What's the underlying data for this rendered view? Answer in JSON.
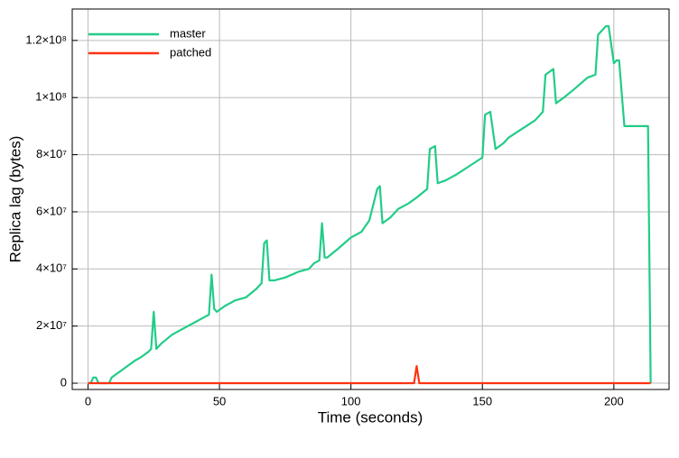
{
  "chart_data": {
    "type": "line",
    "x_label": "Time (seconds)",
    "y_label": "Replica lag (bytes)",
    "xlim": [
      -6,
      221
    ],
    "ylim": [
      -2200000,
      131000000
    ],
    "xticks": [
      0,
      50,
      100,
      150,
      200
    ],
    "yticks": [
      0,
      {
        "value": 20000000,
        "label": "2×10⁷"
      },
      {
        "value": 40000000,
        "label": "4×10⁷"
      },
      {
        "value": 60000000,
        "label": "6×10⁷"
      },
      {
        "value": 80000000,
        "label": "8×10⁷"
      },
      {
        "value": 100000000,
        "label": "1×10⁸"
      },
      {
        "value": 120000000,
        "label": "1.2×10⁸"
      }
    ],
    "grid": true,
    "legend": "upper left",
    "series": [
      {
        "name": "master",
        "color": "#22cc88",
        "x": [
          0,
          1,
          2,
          3,
          4,
          8,
          9,
          12,
          15,
          18,
          20,
          23,
          24,
          25,
          26,
          28,
          32,
          36,
          40,
          44,
          46,
          47,
          48,
          49,
          52,
          56,
          60,
          64,
          66,
          67,
          68,
          69,
          71,
          75,
          80,
          84,
          86,
          88,
          89,
          90,
          91,
          95,
          100,
          104,
          107,
          110,
          111,
          112,
          115,
          118,
          122,
          125,
          129,
          130,
          132,
          133,
          136,
          140,
          145,
          150,
          151,
          153,
          155,
          158,
          160,
          165,
          170,
          173,
          174,
          177,
          178,
          181,
          185,
          190,
          193,
          194,
          197,
          198,
          200,
          201,
          202,
          204,
          213,
          214
        ],
        "values": [
          0,
          0,
          2000000,
          2000000,
          0,
          0,
          2000000,
          4000000,
          6000000,
          8000000,
          9000000,
          11000000,
          12000000,
          25000000,
          12000000,
          14000000,
          17000000,
          19000000,
          21000000,
          23000000,
          24000000,
          38000000,
          26000000,
          25000000,
          27000000,
          29000000,
          30000000,
          33000000,
          35000000,
          49000000,
          50000000,
          36000000,
          36000000,
          37000000,
          39000000,
          40000000,
          42000000,
          43000000,
          56000000,
          44000000,
          44000000,
          47000000,
          51000000,
          53000000,
          57000000,
          68000000,
          69000000,
          56000000,
          58000000,
          61000000,
          63000000,
          65000000,
          68000000,
          82000000,
          83000000,
          70000000,
          71000000,
          73000000,
          76000000,
          79000000,
          94000000,
          95000000,
          82000000,
          84000000,
          86000000,
          89000000,
          92000000,
          95000000,
          108000000,
          110000000,
          98000000,
          100000000,
          103000000,
          107000000,
          108000000,
          122000000,
          125000000,
          125000000,
          112000000,
          113000000,
          113000000,
          90000000,
          90000000,
          0
        ]
      },
      {
        "name": "patched",
        "color": "#ff3311",
        "x": [
          0,
          124,
          125,
          126,
          214
        ],
        "values": [
          0,
          0,
          6000000,
          0,
          0
        ]
      }
    ]
  }
}
